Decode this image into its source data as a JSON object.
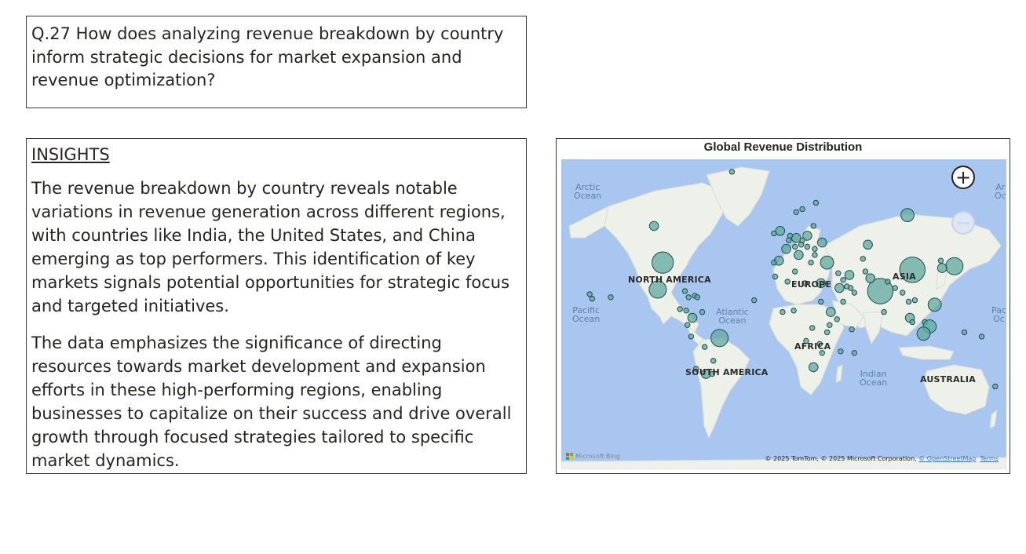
{
  "question": "Q.27 How does analyzing revenue breakdown by country inform strategic decisions for market expansion and revenue optimization?",
  "insights": {
    "heading": "INSIGHTS",
    "paragraph1": "The revenue breakdown by country reveals notable variations in revenue generation across different regions, with countries like India, the United States, and China emerging as top performers. This identification of key markets signals potential opportunities for strategic focus and targeted initiatives.",
    "paragraph2": "The data emphasizes the significance of directing resources towards market development and expansion efforts in these high-performing regions, enabling businesses to capitalize on their success and drive overall growth through focused strategies tailored to specific market dynamics."
  },
  "map": {
    "title": "Global Revenue Distribution",
    "continents": {
      "north_america": "NORTH AMERICA",
      "south_america": "SOUTH AMERICA",
      "europe": "EUROPE",
      "africa": "AFRICA",
      "asia": "ASIA",
      "australia": "AUSTRALIA"
    },
    "oceans": {
      "arctic_line1": "Arctic",
      "arctic_line2": "Ocean",
      "arctic_right_line1": "Ar",
      "arctic_right_line2": "Oc",
      "pacific_line1": "Pacific",
      "pacific_line2": "Ocean",
      "pacific_right_line1": "Pac",
      "pacific_right_line2": "Oc",
      "atlantic_line1": "Atlantic",
      "atlantic_line2": "Ocean",
      "indian_line1": "Indian",
      "indian_line2": "Ocean"
    },
    "zoom_in_symbol": "+",
    "zoom_out_symbol": "−",
    "bing_label": "Microsoft Bing",
    "copyright": "© 2025 TomTom, © 2025 Microsoft Corporation,",
    "osm_link": "© OpenStreetMap",
    "terms_link": "Terms",
    "colors": {
      "bubble_fill": "#5fa9a0",
      "bubble_stroke": "#1f4e4a",
      "ocean": "#a9c6f0",
      "land": "#eef0ea"
    },
    "chart_data": {
      "type": "scatter",
      "description_unit": "relative revenue bubble size",
      "points": [
        {
          "lon": -42,
          "lat": 72,
          "size": 1
        },
        {
          "lon": -105,
          "lat": 56,
          "size": 2
        },
        {
          "lon": -98,
          "lat": 39,
          "size": 5
        },
        {
          "lon": -102,
          "lat": 23,
          "size": 4
        },
        {
          "lon": -157,
          "lat": 20,
          "size": 1
        },
        {
          "lon": -155,
          "lat": 17,
          "size": 1
        },
        {
          "lon": -140,
          "lat": 18,
          "size": 1
        },
        {
          "lon": -80,
          "lat": 22,
          "size": 1
        },
        {
          "lon": -77,
          "lat": 18,
          "size": 1
        },
        {
          "lon": -72,
          "lat": 19,
          "size": 1
        },
        {
          "lon": -70,
          "lat": 18,
          "size": 1
        },
        {
          "lon": -84,
          "lat": 10,
          "size": 1
        },
        {
          "lon": -79,
          "lat": 9,
          "size": 1
        },
        {
          "lon": -74,
          "lat": 4,
          "size": 2
        },
        {
          "lon": -66,
          "lat": 8,
          "size": 1
        },
        {
          "lon": -78,
          "lat": -1,
          "size": 1
        },
        {
          "lon": -75,
          "lat": -9,
          "size": 1
        },
        {
          "lon": -52,
          "lat": -10,
          "size": 4
        },
        {
          "lon": -64,
          "lat": -16,
          "size": 1
        },
        {
          "lon": -63,
          "lat": -33,
          "size": 2
        },
        {
          "lon": -71,
          "lat": -30,
          "size": 1
        },
        {
          "lon": -57,
          "lat": -25,
          "size": 1
        },
        {
          "lon": -58,
          "lat": -33,
          "size": 1
        },
        {
          "lon": -24,
          "lat": 16,
          "size": 1
        },
        {
          "lon": -3,
          "lat": 54,
          "size": 2
        },
        {
          "lon": -8,
          "lat": 53,
          "size": 1
        },
        {
          "lon": 2,
          "lat": 46,
          "size": 2
        },
        {
          "lon": -4,
          "lat": 40,
          "size": 2
        },
        {
          "lon": -8,
          "lat": 39,
          "size": 1
        },
        {
          "lon": 10,
          "lat": 51,
          "size": 2
        },
        {
          "lon": 12,
          "lat": 43,
          "size": 2
        },
        {
          "lon": 15,
          "lat": 62,
          "size": 1
        },
        {
          "lon": 10,
          "lat": 61,
          "size": 1
        },
        {
          "lon": 26,
          "lat": 64,
          "size": 1
        },
        {
          "lon": 5,
          "lat": 52,
          "size": 1
        },
        {
          "lon": 4,
          "lat": 50,
          "size": 1
        },
        {
          "lon": 9,
          "lat": 47,
          "size": 1
        },
        {
          "lon": 14,
          "lat": 48,
          "size": 1
        },
        {
          "lon": 19,
          "lat": 52,
          "size": 2
        },
        {
          "lon": 15,
          "lat": 50,
          "size": 1
        },
        {
          "lon": 19,
          "lat": 47,
          "size": 1
        },
        {
          "lon": 25,
          "lat": 46,
          "size": 1
        },
        {
          "lon": 22,
          "lat": 39,
          "size": 1
        },
        {
          "lon": 25,
          "lat": 43,
          "size": 1
        },
        {
          "lon": 31,
          "lat": 49,
          "size": 2
        },
        {
          "lon": 24,
          "lat": 56,
          "size": 1
        },
        {
          "lon": 35,
          "lat": 39,
          "size": 3
        },
        {
          "lon": 100,
          "lat": 60,
          "size": 3
        },
        {
          "lon": 104,
          "lat": 35,
          "size": 6
        },
        {
          "lon": 78,
          "lat": 22,
          "size": 6
        },
        {
          "lon": 138,
          "lat": 37,
          "size": 4
        },
        {
          "lon": 128,
          "lat": 36,
          "size": 2
        },
        {
          "lon": 127,
          "lat": 40,
          "size": 1
        },
        {
          "lon": 45,
          "lat": 24,
          "size": 2
        },
        {
          "lon": 53,
          "lat": 32,
          "size": 2
        },
        {
          "lon": 44,
          "lat": 33,
          "size": 1
        },
        {
          "lon": 54,
          "lat": 24,
          "size": 1
        },
        {
          "lon": 48,
          "lat": 29,
          "size": 1
        },
        {
          "lon": 51,
          "lat": 25,
          "size": 1
        },
        {
          "lon": 57,
          "lat": 21,
          "size": 1
        },
        {
          "lon": 48,
          "lat": 15,
          "size": 1
        },
        {
          "lon": 68,
          "lat": 48,
          "size": 2
        },
        {
          "lon": 64,
          "lat": 41,
          "size": 1
        },
        {
          "lon": 70,
          "lat": 30,
          "size": 2
        },
        {
          "lon": 66,
          "lat": 34,
          "size": 1
        },
        {
          "lon": 84,
          "lat": 28,
          "size": 1
        },
        {
          "lon": 90,
          "lat": 24,
          "size": 1
        },
        {
          "lon": 81,
          "lat": 8,
          "size": 1
        },
        {
          "lon": 96,
          "lat": 21,
          "size": 1
        },
        {
          "lon": 101,
          "lat": 15,
          "size": 1
        },
        {
          "lon": 106,
          "lat": 16,
          "size": 1
        },
        {
          "lon": 102,
          "lat": 4,
          "size": 2
        },
        {
          "lon": 104,
          "lat": 1,
          "size": 1
        },
        {
          "lon": 122,
          "lat": 13,
          "size": 3
        },
        {
          "lon": 114,
          "lat": 1,
          "size": 1
        },
        {
          "lon": 118,
          "lat": -2,
          "size": 3
        },
        {
          "lon": 113,
          "lat": -7,
          "size": 3
        },
        {
          "lon": 146,
          "lat": -6,
          "size": 1
        },
        {
          "lon": 160,
          "lat": -9,
          "size": 1
        },
        {
          "lon": 171,
          "lat": -40,
          "size": 1
        },
        {
          "lon": 30,
          "lat": 27,
          "size": 2
        },
        {
          "lon": 17,
          "lat": 27,
          "size": 1
        },
        {
          "lon": 3,
          "lat": 28,
          "size": 1
        },
        {
          "lon": -7,
          "lat": 31,
          "size": 1
        },
        {
          "lon": 9,
          "lat": 34,
          "size": 1
        },
        {
          "lon": 38,
          "lat": 8,
          "size": 2
        },
        {
          "lon": 30,
          "lat": 15,
          "size": 1
        },
        {
          "lon": 8,
          "lat": 9,
          "size": 1
        },
        {
          "lon": -1,
          "lat": 8,
          "size": 1
        },
        {
          "lon": 23,
          "lat": -3,
          "size": 1
        },
        {
          "lon": 37,
          "lat": -1,
          "size": 1
        },
        {
          "lon": 35,
          "lat": -6,
          "size": 1
        },
        {
          "lon": 18,
          "lat": -12,
          "size": 1
        },
        {
          "lon": 29,
          "lat": -14,
          "size": 1
        },
        {
          "lon": 31,
          "lat": -20,
          "size": 1
        },
        {
          "lon": 24,
          "lat": -29,
          "size": 2
        },
        {
          "lon": 46,
          "lat": -19,
          "size": 1
        },
        {
          "lon": 57,
          "lat": -20,
          "size": 1
        },
        {
          "lon": 55,
          "lat": -4,
          "size": 1
        },
        {
          "lon": 43,
          "lat": 3,
          "size": 1
        }
      ]
    }
  }
}
